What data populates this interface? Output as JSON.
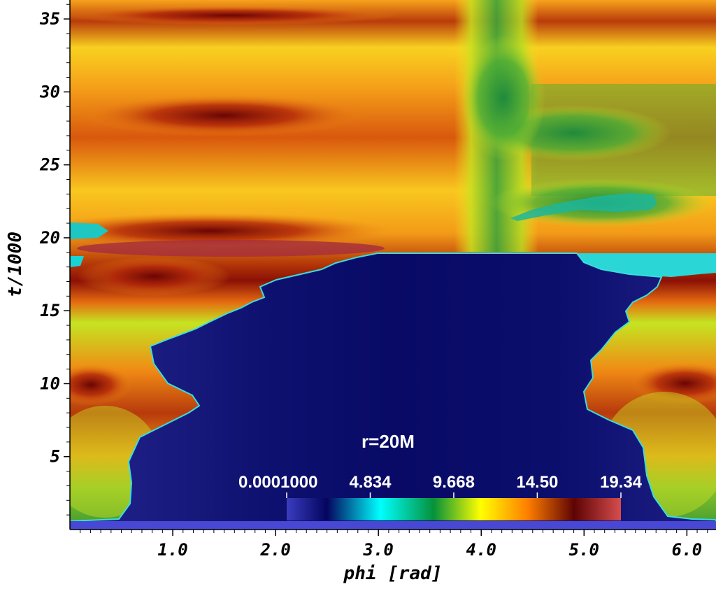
{
  "chart_data": {
    "type": "heatmap",
    "xlabel": "phi [rad]",
    "ylabel": "t/1000",
    "xlim": [
      0.0,
      6.2832
    ],
    "ylim": [
      0.0,
      36.3
    ],
    "x_ticks": [
      {
        "value": 1.0,
        "label": "1.0"
      },
      {
        "value": 2.0,
        "label": "2.0"
      },
      {
        "value": 3.0,
        "label": "3.0"
      },
      {
        "value": 4.0,
        "label": "4.0"
      },
      {
        "value": 5.0,
        "label": "5.0"
      },
      {
        "value": 6.0,
        "label": "6.0"
      }
    ],
    "y_ticks": [
      {
        "value": 5,
        "label": "5"
      },
      {
        "value": 10,
        "label": "10"
      },
      {
        "value": 15,
        "label": "15"
      },
      {
        "value": 20,
        "label": "20"
      },
      {
        "value": 25,
        "label": "25"
      },
      {
        "value": 30,
        "label": "30"
      },
      {
        "value": 35,
        "label": "35"
      }
    ],
    "annotation": "r=20M",
    "colorbar": {
      "min": 0.0001,
      "max": 19.34,
      "ticks": [
        {
          "value": 0.0001,
          "label": "0.0001000"
        },
        {
          "value": 4.834,
          "label": "4.834"
        },
        {
          "value": 9.668,
          "label": "9.668"
        },
        {
          "value": 14.5,
          "label": "14.50"
        },
        {
          "value": 19.34,
          "label": "19.34"
        }
      ],
      "colors": [
        "#3a3cc0",
        "#04045e",
        "#00ffff",
        "#05913a",
        "#ffff00",
        "#ff7f00",
        "#5e0304",
        "#d64d4d"
      ]
    }
  }
}
